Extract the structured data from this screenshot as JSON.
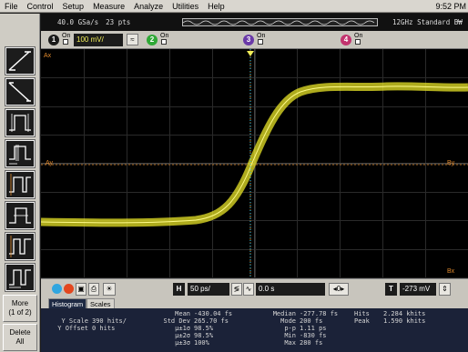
{
  "menu": {
    "items": [
      "File",
      "Control",
      "Setup",
      "Measure",
      "Analyze",
      "Utilities",
      "Help"
    ],
    "clock": "9:52 PM"
  },
  "acquisition": {
    "sample_rate": "40.0 GSa/s",
    "points": "23 pts",
    "bandwidth": "12GHz Standard BW",
    "collapse": "–"
  },
  "channels": [
    {
      "num": "1",
      "state": "On",
      "scale": "100 mV/",
      "color": "#1a1a1a"
    },
    {
      "num": "2",
      "state": "On",
      "color": "#2fa836"
    },
    {
      "num": "3",
      "state": "On",
      "color": "#6a3aa8"
    },
    {
      "num": "4",
      "state": "On",
      "color": "#c2336e"
    }
  ],
  "graticule": {
    "marker_ax": "Ax",
    "marker_ay": "Ay",
    "marker_by": "By",
    "marker_bx": "Bx",
    "waveform_color": "#e8e427"
  },
  "sidebar": {
    "more_label": "More",
    "more_sub": "(1 of 2)",
    "delete_label": "Delete",
    "delete_sub": "All"
  },
  "controls": {
    "h_label": "H",
    "timebase": "50 ps/",
    "delay": "0.0 s",
    "t_label": "T",
    "trigger_level": "-273 mV"
  },
  "tabs": {
    "histogram": "Histogram",
    "scales": "Scales"
  },
  "results": {
    "y_scale_label": "Y Scale",
    "y_scale_value": "390 hits/",
    "y_offset_label": "Y Offset",
    "y_offset_value": "0 hits",
    "mean_label": "Mean",
    "mean_value": "-430.04 fs",
    "std_label": "Std Dev",
    "std_value": "265.70 fs",
    "s1_label": "µ±1σ",
    "s1_value": "98.5%",
    "s2_label": "µ±2σ",
    "s2_value": "98.5%",
    "s3_label": "µ±3σ",
    "s3_value": "100%",
    "median_label": "Median",
    "median_value": "-277.78 fs",
    "mode_label": "Mode",
    "mode_value": "200 fs",
    "pp_label": "p-p",
    "pp_value": "1.11 ps",
    "min_label": "Min",
    "min_value": "-830 fs",
    "max_label": "Max",
    "max_value": "280 fs",
    "hits_label": "Hits",
    "hits_value": "2.284 khits",
    "peak_label": "Peak",
    "peak_value": "1.590 khits"
  }
}
